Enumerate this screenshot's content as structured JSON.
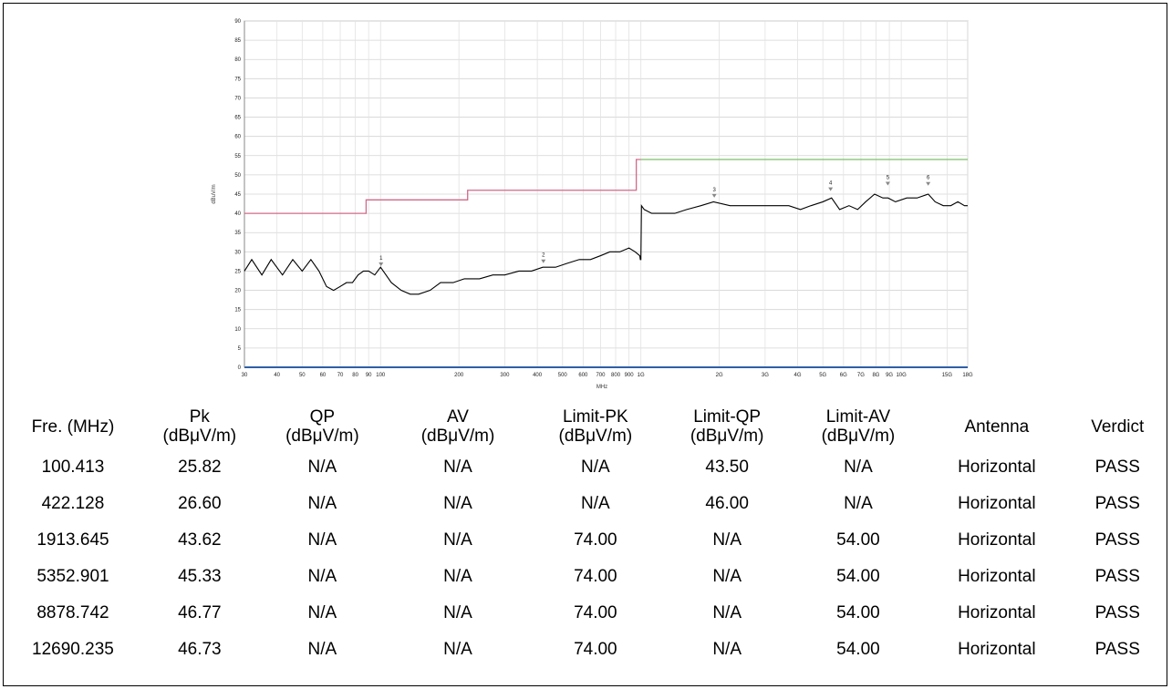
{
  "chart_data": {
    "type": "line",
    "xscale": "log",
    "xlabel": "MHz",
    "ylabel": "dBuV/m",
    "xlim": [
      30,
      18000
    ],
    "ylim": [
      0,
      90
    ],
    "yticks": [
      0,
      5,
      10,
      15,
      20,
      25,
      30,
      35,
      40,
      45,
      50,
      55,
      60,
      65,
      70,
      75,
      80,
      85,
      90
    ],
    "xticks": [
      {
        "v": 30,
        "t": "30"
      },
      {
        "v": 40,
        "t": "40"
      },
      {
        "v": 50,
        "t": "50"
      },
      {
        "v": 60,
        "t": "60"
      },
      {
        "v": 70,
        "t": "70"
      },
      {
        "v": 80,
        "t": "80"
      },
      {
        "v": 90,
        "t": "90"
      },
      {
        "v": 100,
        "t": "100"
      },
      {
        "v": 200,
        "t": "200"
      },
      {
        "v": 300,
        "t": "300"
      },
      {
        "v": 400,
        "t": "400"
      },
      {
        "v": 500,
        "t": "500"
      },
      {
        "v": 600,
        "t": "600"
      },
      {
        "v": 700,
        "t": "700"
      },
      {
        "v": 800,
        "t": "800"
      },
      {
        "v": 900,
        "t": "900"
      },
      {
        "v": 1000,
        "t": "1G"
      },
      {
        "v": 2000,
        "t": "2G"
      },
      {
        "v": 3000,
        "t": "3G"
      },
      {
        "v": 4000,
        "t": "4G"
      },
      {
        "v": 5000,
        "t": "5G"
      },
      {
        "v": 6000,
        "t": "6G"
      },
      {
        "v": 7000,
        "t": "7G"
      },
      {
        "v": 8000,
        "t": "8G"
      },
      {
        "v": 9000,
        "t": "9G"
      },
      {
        "v": 10000,
        "t": "10G"
      },
      {
        "v": 15000,
        "t": "15G"
      },
      {
        "v": 18000,
        "t": "18G"
      }
    ],
    "grid": true,
    "series": [
      {
        "name": "",
        "color": "#d06a8a",
        "values": [
          [
            30,
            40
          ],
          [
            88,
            40
          ],
          [
            88,
            43.5
          ],
          [
            216,
            43.5
          ],
          [
            216,
            46
          ],
          [
            960,
            46
          ],
          [
            960,
            54
          ],
          [
            1000,
            54
          ]
        ]
      },
      {
        "name": "",
        "color": "#7dbf6a",
        "values": [
          [
            1000,
            54
          ],
          [
            18000,
            54
          ]
        ]
      },
      {
        "name": "",
        "color": "#000000",
        "values": [
          [
            30,
            25
          ],
          [
            32,
            28
          ],
          [
            35,
            24
          ],
          [
            38,
            28
          ],
          [
            42,
            24
          ],
          [
            46,
            28
          ],
          [
            50,
            25
          ],
          [
            54,
            28
          ],
          [
            58,
            25
          ],
          [
            62,
            21
          ],
          [
            66,
            20
          ],
          [
            70,
            21
          ],
          [
            74,
            22
          ],
          [
            78,
            22
          ],
          [
            82,
            24
          ],
          [
            86,
            25
          ],
          [
            90,
            25
          ],
          [
            95,
            24
          ],
          [
            100,
            26
          ],
          [
            110,
            22
          ],
          [
            120,
            20
          ],
          [
            130,
            19
          ],
          [
            140,
            19
          ],
          [
            155,
            20
          ],
          [
            170,
            22
          ],
          [
            190,
            22
          ],
          [
            210,
            23
          ],
          [
            240,
            23
          ],
          [
            270,
            24
          ],
          [
            300,
            24
          ],
          [
            340,
            25
          ],
          [
            380,
            25
          ],
          [
            420,
            26
          ],
          [
            470,
            26
          ],
          [
            520,
            27
          ],
          [
            580,
            28
          ],
          [
            640,
            28
          ],
          [
            700,
            29
          ],
          [
            760,
            30
          ],
          [
            830,
            30
          ],
          [
            900,
            31
          ],
          [
            950,
            30
          ],
          [
            990,
            29
          ],
          [
            995,
            28
          ],
          [
            1000,
            28
          ],
          [
            1005,
            42
          ],
          [
            1030,
            41
          ],
          [
            1100,
            40
          ],
          [
            1200,
            40
          ],
          [
            1350,
            40
          ],
          [
            1500,
            41
          ],
          [
            1700,
            42
          ],
          [
            1900,
            43
          ],
          [
            2200,
            42
          ],
          [
            2500,
            42
          ],
          [
            2900,
            42
          ],
          [
            3300,
            42
          ],
          [
            3700,
            42
          ],
          [
            4100,
            41
          ],
          [
            4500,
            42
          ],
          [
            5000,
            43
          ],
          [
            5400,
            44
          ],
          [
            5800,
            41
          ],
          [
            6300,
            42
          ],
          [
            6800,
            41
          ],
          [
            7300,
            43
          ],
          [
            7900,
            45
          ],
          [
            8500,
            44
          ],
          [
            8900,
            44
          ],
          [
            9500,
            43
          ],
          [
            10500,
            44
          ],
          [
            11500,
            44
          ],
          [
            12700,
            45
          ],
          [
            13500,
            43
          ],
          [
            14500,
            42
          ],
          [
            15500,
            42
          ],
          [
            16500,
            43
          ],
          [
            17500,
            42
          ],
          [
            18000,
            42
          ]
        ]
      }
    ],
    "markers": [
      {
        "label": "1",
        "x": 100.413,
        "y": 25.82
      },
      {
        "label": "2",
        "x": 422.128,
        "y": 26.6
      },
      {
        "label": "3",
        "x": 1913.645,
        "y": 43.62
      },
      {
        "label": "4",
        "x": 5352.901,
        "y": 45.33
      },
      {
        "label": "5",
        "x": 8878.742,
        "y": 46.77
      },
      {
        "label": "6",
        "x": 12690.235,
        "y": 46.73
      }
    ]
  },
  "table": {
    "headers": [
      [
        "Fre. (MHz)"
      ],
      [
        "Pk",
        "(dBμV/m)"
      ],
      [
        "QP",
        "(dBμV/m)"
      ],
      [
        "AV",
        "(dBμV/m)"
      ],
      [
        "Limit-PK",
        "(dBμV/m)"
      ],
      [
        "Limit-QP",
        "(dBμV/m)"
      ],
      [
        "Limit-AV",
        "(dBμV/m)"
      ],
      [
        "Antenna"
      ],
      [
        "Verdict"
      ]
    ],
    "rows": [
      [
        "100.413",
        "25.82",
        "N/A",
        "N/A",
        "N/A",
        "43.50",
        "N/A",
        "Horizontal",
        "PASS"
      ],
      [
        "422.128",
        "26.60",
        "N/A",
        "N/A",
        "N/A",
        "46.00",
        "N/A",
        "Horizontal",
        "PASS"
      ],
      [
        "1913.645",
        "43.62",
        "N/A",
        "N/A",
        "74.00",
        "N/A",
        "54.00",
        "Horizontal",
        "PASS"
      ],
      [
        "5352.901",
        "45.33",
        "N/A",
        "N/A",
        "74.00",
        "N/A",
        "54.00",
        "Horizontal",
        "PASS"
      ],
      [
        "8878.742",
        "46.77",
        "N/A",
        "N/A",
        "74.00",
        "N/A",
        "54.00",
        "Horizontal",
        "PASS"
      ],
      [
        "12690.235",
        "46.73",
        "N/A",
        "N/A",
        "74.00",
        "N/A",
        "54.00",
        "Horizontal",
        "PASS"
      ]
    ]
  }
}
